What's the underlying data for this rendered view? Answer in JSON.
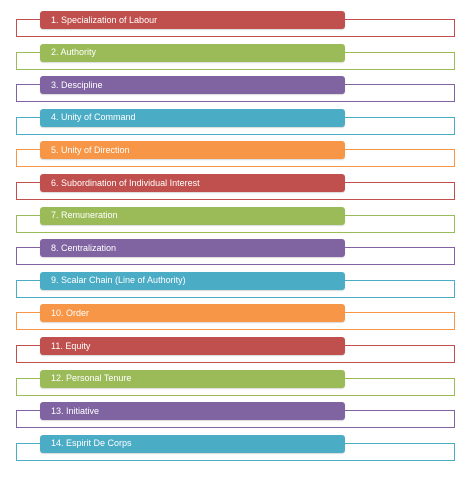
{
  "colors": {
    "red": "#C0504D",
    "green": "#9BBB59",
    "purple": "#8064A2",
    "blue": "#4BACC6",
    "orange": "#F79646"
  },
  "items": [
    {
      "label": "1. Specialization of Labour",
      "color": "red"
    },
    {
      "label": "2. Authority",
      "color": "green"
    },
    {
      "label": "3. Descipline",
      "color": "purple"
    },
    {
      "label": "4. Unity of Command",
      "color": "blue"
    },
    {
      "label": "5. Unity of Direction",
      "color": "orange"
    },
    {
      "label": "6. Subordination of Individual Interest",
      "color": "red"
    },
    {
      "label": "7. Remuneration",
      "color": "green"
    },
    {
      "label": "8. Centralization",
      "color": "purple"
    },
    {
      "label": "9. Scalar Chain (Line of Authority)",
      "color": "blue"
    },
    {
      "label": "10. Order",
      "color": "orange"
    },
    {
      "label": "11. Equity",
      "color": "red"
    },
    {
      "label": "12. Personal Tenure",
      "color": "green"
    },
    {
      "label": "13. Initiative",
      "color": "purple"
    },
    {
      "label": "14. Espirit De Corps",
      "color": "blue"
    }
  ]
}
